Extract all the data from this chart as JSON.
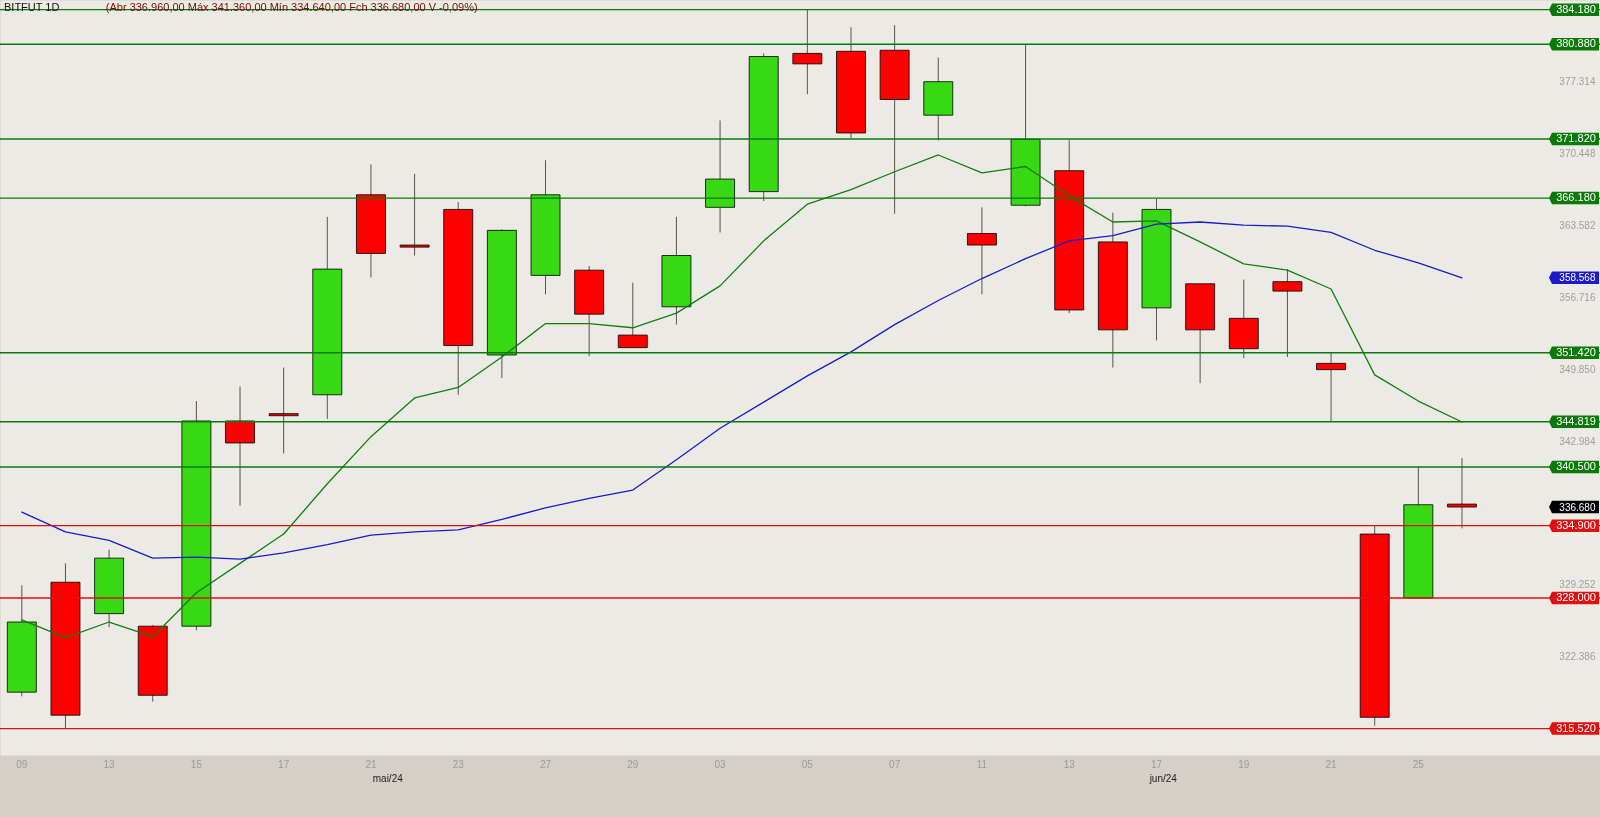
{
  "chart_data": {
    "type": "candlestick",
    "title": "BITFUT 1D",
    "subtitle": "(Abr 336.960,00 Máx 341.360,00 Mín 334.640,00 Fch 336.680,00 V -0,09%)",
    "categories": [
      "09",
      null,
      "13",
      null,
      "15",
      null,
      "17",
      null,
      "21",
      null,
      "23",
      null,
      "27",
      null,
      "29",
      null,
      "03",
      null,
      "05",
      null,
      "07",
      null,
      "11",
      null,
      "13",
      null,
      "17",
      null,
      "19",
      null,
      "21",
      null,
      "25",
      null
    ],
    "ohlc": [
      [
        319000,
        329200,
        318600,
        325700
      ],
      [
        329500,
        331300,
        315500,
        316800
      ],
      [
        326500,
        332600,
        325200,
        331800
      ],
      [
        325300,
        325400,
        318100,
        318700
      ],
      [
        325300,
        346800,
        324900,
        344900
      ],
      [
        344900,
        348200,
        336800,
        342800
      ],
      [
        345600,
        350000,
        341800,
        345400
      ],
      [
        347400,
        364400,
        345100,
        359400
      ],
      [
        366500,
        369400,
        358600,
        360900
      ],
      [
        361700,
        368500,
        360700,
        361500
      ],
      [
        365100,
        365800,
        347400,
        352100
      ],
      [
        351200,
        363200,
        349000,
        363100
      ],
      [
        358800,
        369800,
        357000,
        366500
      ],
      [
        359300,
        359700,
        351100,
        355100
      ],
      [
        353100,
        358100,
        351900,
        351900
      ],
      [
        355800,
        364400,
        354100,
        360700
      ],
      [
        365300,
        373600,
        362900,
        368000
      ],
      [
        366800,
        380000,
        365900,
        379700
      ],
      [
        380000,
        384200,
        376100,
        379000
      ],
      [
        380200,
        382500,
        371900,
        372400
      ],
      [
        380300,
        382700,
        364700,
        375600
      ],
      [
        374100,
        379600,
        371700,
        377300
      ],
      [
        362800,
        365300,
        357000,
        361700
      ],
      [
        365500,
        380900,
        365400,
        371800
      ],
      [
        368800,
        371700,
        355200,
        355500
      ],
      [
        362000,
        364800,
        350000,
        353600
      ],
      [
        355700,
        366100,
        352600,
        365100
      ],
      [
        358000,
        358000,
        348500,
        353600
      ],
      [
        354700,
        358400,
        350900,
        351800
      ],
      [
        358200,
        359400,
        351000,
        357300
      ],
      [
        350400,
        351400,
        344900,
        349800
      ],
      [
        334100,
        334900,
        315800,
        316600
      ],
      [
        328000,
        340500,
        328000,
        336900
      ],
      [
        336960,
        341360,
        334640,
        336680
      ]
    ],
    "colors": [
      "#38d914",
      "#ff0000",
      "#38d914",
      "#ff0000",
      "#38d914",
      "#ff0000",
      "#ff0000",
      "#38d914",
      "#ff0000",
      "#ff0000",
      "#ff0000",
      "#38d914",
      "#38d914",
      "#ff0000",
      "#ff0000",
      "#38d914",
      "#38d914",
      "#38d914",
      "#ff0000",
      "#ff0000",
      "#ff0000",
      "#38d914",
      "#ff0000",
      "#38d914",
      "#ff0000",
      "#ff0000",
      "#38d914",
      "#ff0000",
      "#ff0000",
      "#ff0000",
      "#ff0000",
      "#ff0000",
      "#38d914",
      "#ff0000"
    ],
    "series": [
      {
        "type": "line",
        "color": "#137d13",
        "values": [
          325900,
          324200,
          325700,
          324300,
          328500,
          331300,
          334100,
          338900,
          343400,
          347100,
          348100,
          351000,
          354200,
          354200,
          353800,
          355200,
          357800,
          362100,
          365600,
          367000,
          368700,
          370300,
          368600,
          369200,
          366400,
          363900,
          364000,
          362000,
          359900,
          359300,
          357500,
          349300,
          346800,
          344800
        ]
      },
      {
        "type": "line",
        "color": "#1a1acc",
        "values": [
          336200,
          334300,
          333500,
          331800,
          331900,
          331700,
          332300,
          333100,
          334000,
          334300,
          334500,
          335500,
          336600,
          337500,
          338300,
          341200,
          344200,
          346700,
          349200,
          351500,
          354100,
          356400,
          358500,
          360400,
          362100,
          362600,
          363700,
          363900,
          363600,
          363500,
          362900,
          361200,
          360000,
          358568
        ]
      }
    ],
    "ylim": [
      313000,
      385100
    ],
    "yticks": [
      {
        "value": 322386,
        "label": "322.386"
      },
      {
        "value": 329252,
        "label": "329.252"
      },
      {
        "value": 336680,
        "label": "336.680"
      },
      {
        "value": 342984,
        "label": "342.984"
      },
      {
        "value": 349850,
        "label": "349.850"
      },
      {
        "value": 356716,
        "label": "356.716"
      },
      {
        "value": 358568,
        "label": "358.568"
      },
      {
        "value": 363582,
        "label": "363.582"
      },
      {
        "value": 370448,
        "label": "370.448"
      },
      {
        "value": 377314,
        "label": "377.314"
      }
    ],
    "ref_lines": [
      {
        "axis": "y",
        "value": 384180,
        "label": "384.180",
        "color": "#0b7a0b"
      },
      {
        "axis": "y",
        "value": 380880,
        "label": "380.880",
        "color": "#0b7a0b"
      },
      {
        "axis": "y",
        "value": 371820,
        "label": "371.820",
        "color": "#0b7a0b"
      },
      {
        "axis": "y",
        "value": 366180,
        "label": "366.180",
        "color": "#0b7a0b"
      },
      {
        "axis": "y",
        "value": 351420,
        "label": "351.420",
        "color": "#0b7a0b"
      },
      {
        "axis": "y",
        "value": 344819,
        "label": "344.819",
        "color": "#0b7a0b"
      },
      {
        "axis": "y",
        "value": 340500,
        "label": "340.500",
        "color": "#0b7a0b"
      },
      {
        "axis": "y",
        "value": 334900,
        "label": "334.900",
        "color": "#e01010"
      },
      {
        "axis": "y",
        "value": 328000,
        "label": "328.000",
        "color": "#e01010"
      },
      {
        "axis": "y",
        "value": 315520,
        "label": "315.520",
        "color": "#e01010"
      }
    ],
    "annotations": [
      "mai/24",
      "jun/24"
    ]
  }
}
